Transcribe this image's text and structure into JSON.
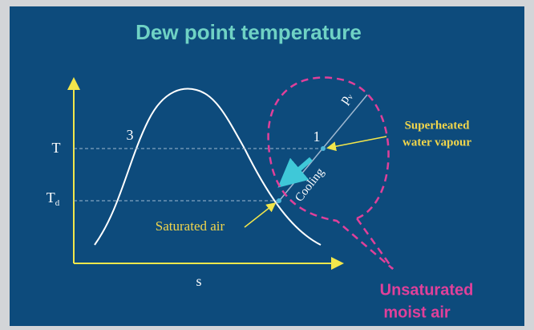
{
  "title": "Dew point temperature",
  "axes": {
    "y_labels": [
      {
        "text": "T"
      },
      {
        "text": "T",
        "subscript": "d"
      }
    ],
    "x_label": "s"
  },
  "points": {
    "p3": "3",
    "p1": "1"
  },
  "isobar_label": {
    "text": "p",
    "subscript": "v"
  },
  "process_label": "Cooling",
  "callouts": {
    "superheated": [
      "Superheated",
      "water vapour"
    ],
    "saturated": "Saturated air"
  },
  "region_label": [
    "Unsaturated",
    "moist air"
  ]
}
